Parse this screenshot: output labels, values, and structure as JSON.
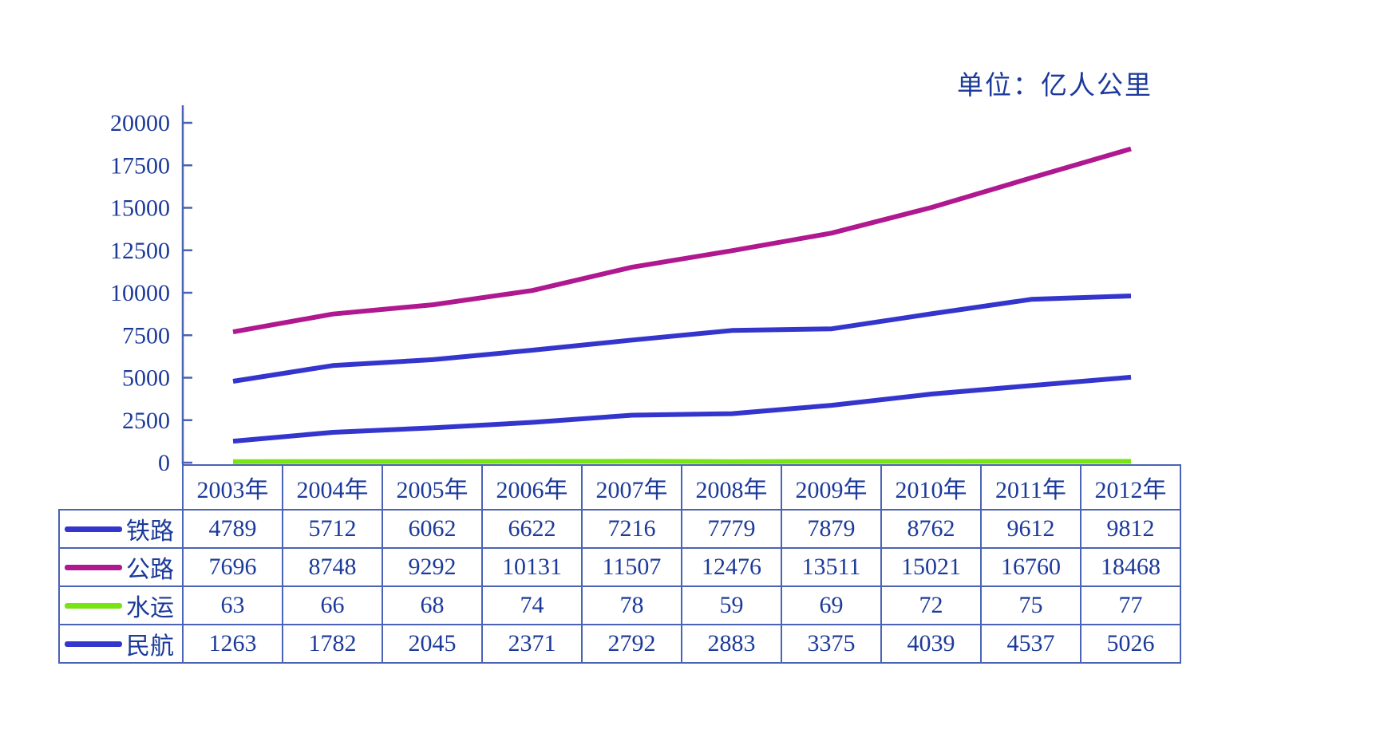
{
  "title": {
    "unit_label": "单位：亿人公里"
  },
  "chart_data": {
    "type": "line",
    "title": "单位：亿人公里",
    "xlabel": "",
    "ylabel": "",
    "categories": [
      "2003年",
      "2004年",
      "2005年",
      "2006年",
      "2007年",
      "2008年",
      "2009年",
      "2010年",
      "2011年",
      "2012年"
    ],
    "series": [
      {
        "name": "铁路",
        "color": "#3435cd",
        "values": [
          4789,
          5712,
          6062,
          6622,
          7216,
          7779,
          7879,
          8762,
          9612,
          9812
        ]
      },
      {
        "name": "公路",
        "color": "#b0188f",
        "values": [
          7696,
          8748,
          9292,
          10131,
          11507,
          12476,
          13511,
          15021,
          16760,
          18468
        ]
      },
      {
        "name": "水运",
        "color": "#79e414",
        "values": [
          63,
          66,
          68,
          74,
          78,
          59,
          69,
          72,
          75,
          77
        ]
      },
      {
        "name": "民航",
        "color": "#3435cd",
        "values": [
          1263,
          1782,
          2045,
          2371,
          2792,
          2883,
          3375,
          4039,
          4537,
          5026
        ]
      }
    ],
    "ylim": [
      0,
      20000
    ],
    "y_ticks": [
      0,
      2500,
      5000,
      7500,
      10000,
      12500,
      15000,
      17500,
      20000
    ],
    "grid": false,
    "legend_position": "table-left-column",
    "text_color": "#1c3a9a",
    "axis_color": "#4a63b4"
  }
}
